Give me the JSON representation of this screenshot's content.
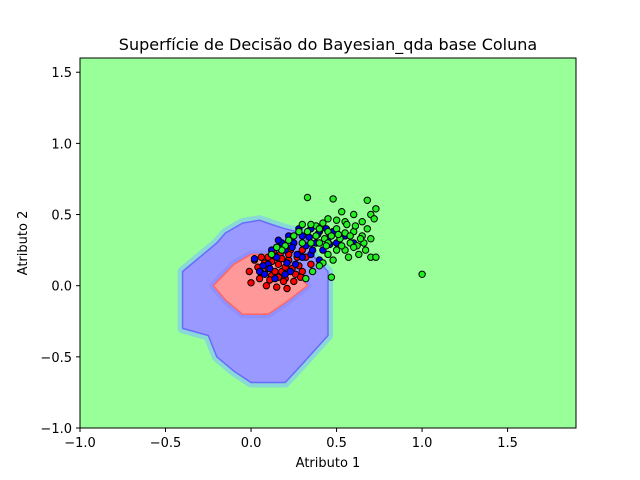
{
  "chart_data": {
    "type": "scatter",
    "title": "Superfície de Decisão do Bayesian_qda base Coluna",
    "xlabel": "Atributo 1",
    "ylabel": "Atributo 2",
    "xlim": [
      -1.0,
      1.9
    ],
    "ylim": [
      -1.0,
      1.6
    ],
    "xticks": [
      -1.0,
      -0.5,
      0.0,
      0.5,
      1.0,
      1.5
    ],
    "xtick_labels": [
      "−1.0",
      "−0.5",
      "0.0",
      "0.5",
      "1.0",
      "1.5"
    ],
    "yticks": [
      -1.0,
      -0.5,
      0.0,
      0.5,
      1.0,
      1.5
    ],
    "ytick_labels": [
      "−1.0",
      "−0.5",
      "0.0",
      "0.5",
      "1.0",
      "1.5"
    ],
    "grid": false,
    "background_region_color": "#99ff99",
    "regions": [
      {
        "class": "blue",
        "color": "#9999ff",
        "polygon": [
          [
            -0.4,
            0.1
          ],
          [
            -0.2,
            0.3
          ],
          [
            -0.15,
            0.37
          ],
          [
            -0.05,
            0.44
          ],
          [
            0.05,
            0.46
          ],
          [
            0.12,
            0.43
          ],
          [
            0.2,
            0.4
          ],
          [
            0.3,
            0.37
          ],
          [
            0.37,
            0.2
          ],
          [
            0.45,
            0.1
          ],
          [
            0.45,
            -0.35
          ],
          [
            0.3,
            -0.55
          ],
          [
            0.2,
            -0.68
          ],
          [
            0.0,
            -0.68
          ],
          [
            -0.1,
            -0.6
          ],
          [
            -0.2,
            -0.5
          ],
          [
            -0.25,
            -0.35
          ],
          [
            -0.4,
            -0.3
          ]
        ]
      },
      {
        "class": "red",
        "color": "#ff9999",
        "polygon": [
          [
            -0.22,
            0.0
          ],
          [
            -0.1,
            0.15
          ],
          [
            0.0,
            0.22
          ],
          [
            0.1,
            0.22
          ],
          [
            0.2,
            0.2
          ],
          [
            0.3,
            0.05
          ],
          [
            0.33,
            0.0
          ],
          [
            0.2,
            -0.12
          ],
          [
            0.1,
            -0.2
          ],
          [
            -0.05,
            -0.2
          ],
          [
            -0.15,
            -0.1
          ]
        ]
      }
    ],
    "series": [
      {
        "color": "#ff0000",
        "points": [
          [
            0.02,
            0.18
          ],
          [
            0.04,
            0.13
          ],
          [
            0.06,
            0.09
          ],
          [
            0.08,
            0.16
          ],
          [
            0.1,
            0.12
          ],
          [
            0.12,
            0.07
          ],
          [
            0.14,
            0.2
          ],
          [
            0.16,
            0.15
          ],
          [
            0.18,
            0.1
          ],
          [
            0.2,
            0.05
          ],
          [
            0.22,
            0.18
          ],
          [
            0.24,
            0.12
          ],
          [
            0.26,
            0.08
          ],
          [
            0.28,
            0.14
          ],
          [
            0.3,
            0.1
          ],
          [
            0.11,
            0.04
          ],
          [
            0.13,
            0.24
          ],
          [
            0.17,
            0.22
          ],
          [
            0.19,
            0.03
          ],
          [
            0.23,
            0.25
          ],
          [
            0.27,
            0.2
          ],
          [
            0.09,
            0.0
          ],
          [
            0.15,
            -0.01
          ],
          [
            0.21,
            -0.02
          ],
          [
            0.0,
            0.02
          ],
          [
            -0.01,
            0.1
          ],
          [
            0.25,
            0.03
          ],
          [
            0.29,
            0.06
          ],
          [
            0.32,
            0.2
          ],
          [
            0.35,
            0.15
          ],
          [
            0.12,
            0.17
          ],
          [
            0.18,
            0.19
          ],
          [
            0.14,
            0.1
          ],
          [
            0.2,
            0.13
          ],
          [
            0.06,
            0.2
          ],
          [
            0.3,
            0.25
          ],
          [
            0.22,
            0.22
          ],
          [
            0.16,
            0.06
          ],
          [
            0.05,
            0.05
          ],
          [
            0.1,
            0.2
          ]
        ]
      },
      {
        "color": "#0000ff",
        "points": [
          [
            0.05,
            0.1
          ],
          [
            0.1,
            0.15
          ],
          [
            0.15,
            0.2
          ],
          [
            0.2,
            0.25
          ],
          [
            0.25,
            0.3
          ],
          [
            0.3,
            0.35
          ],
          [
            0.35,
            0.4
          ],
          [
            0.4,
            0.38
          ],
          [
            0.45,
            0.33
          ],
          [
            0.5,
            0.3
          ],
          [
            0.55,
            0.35
          ],
          [
            0.6,
            0.3
          ],
          [
            0.12,
            0.25
          ],
          [
            0.18,
            0.3
          ],
          [
            0.22,
            0.35
          ],
          [
            0.28,
            0.4
          ],
          [
            0.32,
            0.28
          ],
          [
            0.38,
            0.3
          ],
          [
            0.42,
            0.25
          ],
          [
            0.48,
            0.38
          ],
          [
            0.08,
            0.08
          ],
          [
            0.14,
            0.05
          ],
          [
            0.2,
            0.08
          ],
          [
            0.26,
            0.15
          ],
          [
            0.3,
            0.2
          ],
          [
            0.35,
            0.22
          ],
          [
            0.4,
            0.18
          ],
          [
            0.02,
            0.19
          ],
          [
            0.16,
            0.32
          ],
          [
            0.24,
            0.27
          ],
          [
            0.34,
            0.34
          ],
          [
            0.44,
            0.4
          ],
          [
            0.36,
            0.25
          ],
          [
            0.27,
            0.22
          ],
          [
            0.21,
            0.16
          ],
          [
            0.11,
            0.12
          ],
          [
            0.07,
            0.14
          ],
          [
            0.39,
            0.36
          ],
          [
            0.46,
            0.29
          ],
          [
            0.23,
            0.1
          ]
        ]
      },
      {
        "color": "#22ee22",
        "points": [
          [
            0.33,
            0.62
          ],
          [
            0.48,
            0.61
          ],
          [
            0.68,
            0.6
          ],
          [
            0.73,
            0.54
          ],
          [
            0.7,
            0.5
          ],
          [
            0.6,
            0.5
          ],
          [
            0.53,
            0.52
          ],
          [
            0.45,
            0.47
          ],
          [
            0.5,
            0.46
          ],
          [
            0.55,
            0.45
          ],
          [
            0.65,
            0.45
          ],
          [
            0.72,
            0.47
          ],
          [
            0.42,
            0.44
          ],
          [
            0.38,
            0.42
          ],
          [
            0.35,
            0.43
          ],
          [
            0.3,
            0.43
          ],
          [
            0.4,
            0.4
          ],
          [
            0.45,
            0.38
          ],
          [
            0.5,
            0.4
          ],
          [
            0.55,
            0.37
          ],
          [
            0.6,
            0.38
          ],
          [
            0.65,
            0.35
          ],
          [
            0.7,
            0.33
          ],
          [
            0.62,
            0.28
          ],
          [
            0.58,
            0.3
          ],
          [
            0.52,
            0.33
          ],
          [
            0.47,
            0.35
          ],
          [
            0.43,
            0.33
          ],
          [
            0.38,
            0.35
          ],
          [
            0.33,
            0.38
          ],
          [
            0.28,
            0.38
          ],
          [
            0.25,
            0.35
          ],
          [
            0.22,
            0.32
          ],
          [
            0.2,
            0.28
          ],
          [
            0.18,
            0.25
          ],
          [
            0.15,
            0.27
          ],
          [
            0.12,
            0.22
          ],
          [
            0.3,
            0.3
          ],
          [
            0.35,
            0.3
          ],
          [
            0.4,
            0.3
          ],
          [
            0.45,
            0.3
          ],
          [
            0.5,
            0.25
          ],
          [
            0.55,
            0.25
          ],
          [
            0.6,
            0.27
          ],
          [
            0.66,
            0.3
          ],
          [
            0.7,
            0.2
          ],
          [
            0.73,
            0.2
          ],
          [
            0.67,
            0.25
          ],
          [
            0.63,
            0.22
          ],
          [
            0.57,
            0.2
          ],
          [
            0.48,
            0.18
          ],
          [
            0.42,
            0.16
          ],
          [
            0.36,
            0.1
          ],
          [
            0.32,
            0.05
          ],
          [
            0.47,
            0.06
          ],
          [
            0.4,
            0.14
          ],
          [
            0.45,
            0.22
          ],
          [
            0.53,
            0.28
          ],
          [
            0.58,
            0.35
          ],
          [
            0.61,
            0.42
          ],
          [
            0.68,
            0.4
          ],
          [
            0.64,
            0.33
          ],
          [
            0.56,
            0.43
          ],
          [
            0.51,
            0.36
          ],
          [
            0.44,
            0.28
          ],
          [
            1.0,
            0.08
          ]
        ]
      }
    ]
  }
}
